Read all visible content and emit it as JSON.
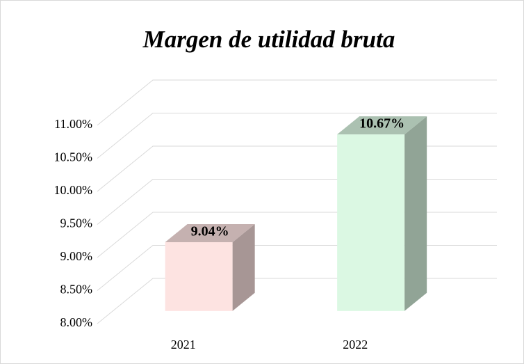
{
  "chart_data": {
    "type": "bar3d",
    "title": "Margen de utilidad bruta",
    "categories": [
      "2021",
      "2022"
    ],
    "values": [
      9.04,
      10.67
    ],
    "value_labels": [
      "9.04%",
      "10.67%"
    ],
    "colors": [
      "#fde3e1",
      "#dbf8e3"
    ],
    "ylim": [
      8,
      11
    ],
    "yticks": [
      {
        "value": 8,
        "label": "8.00%"
      },
      {
        "value": 8.5,
        "label": "8.50%"
      },
      {
        "value": 9,
        "label": "9.00%"
      },
      {
        "value": 9.5,
        "label": "9.50%"
      },
      {
        "value": 10,
        "label": "10.00%"
      },
      {
        "value": 10.5,
        "label": "10.50%"
      },
      {
        "value": 11,
        "label": "11.00%"
      }
    ],
    "grid": true
  }
}
